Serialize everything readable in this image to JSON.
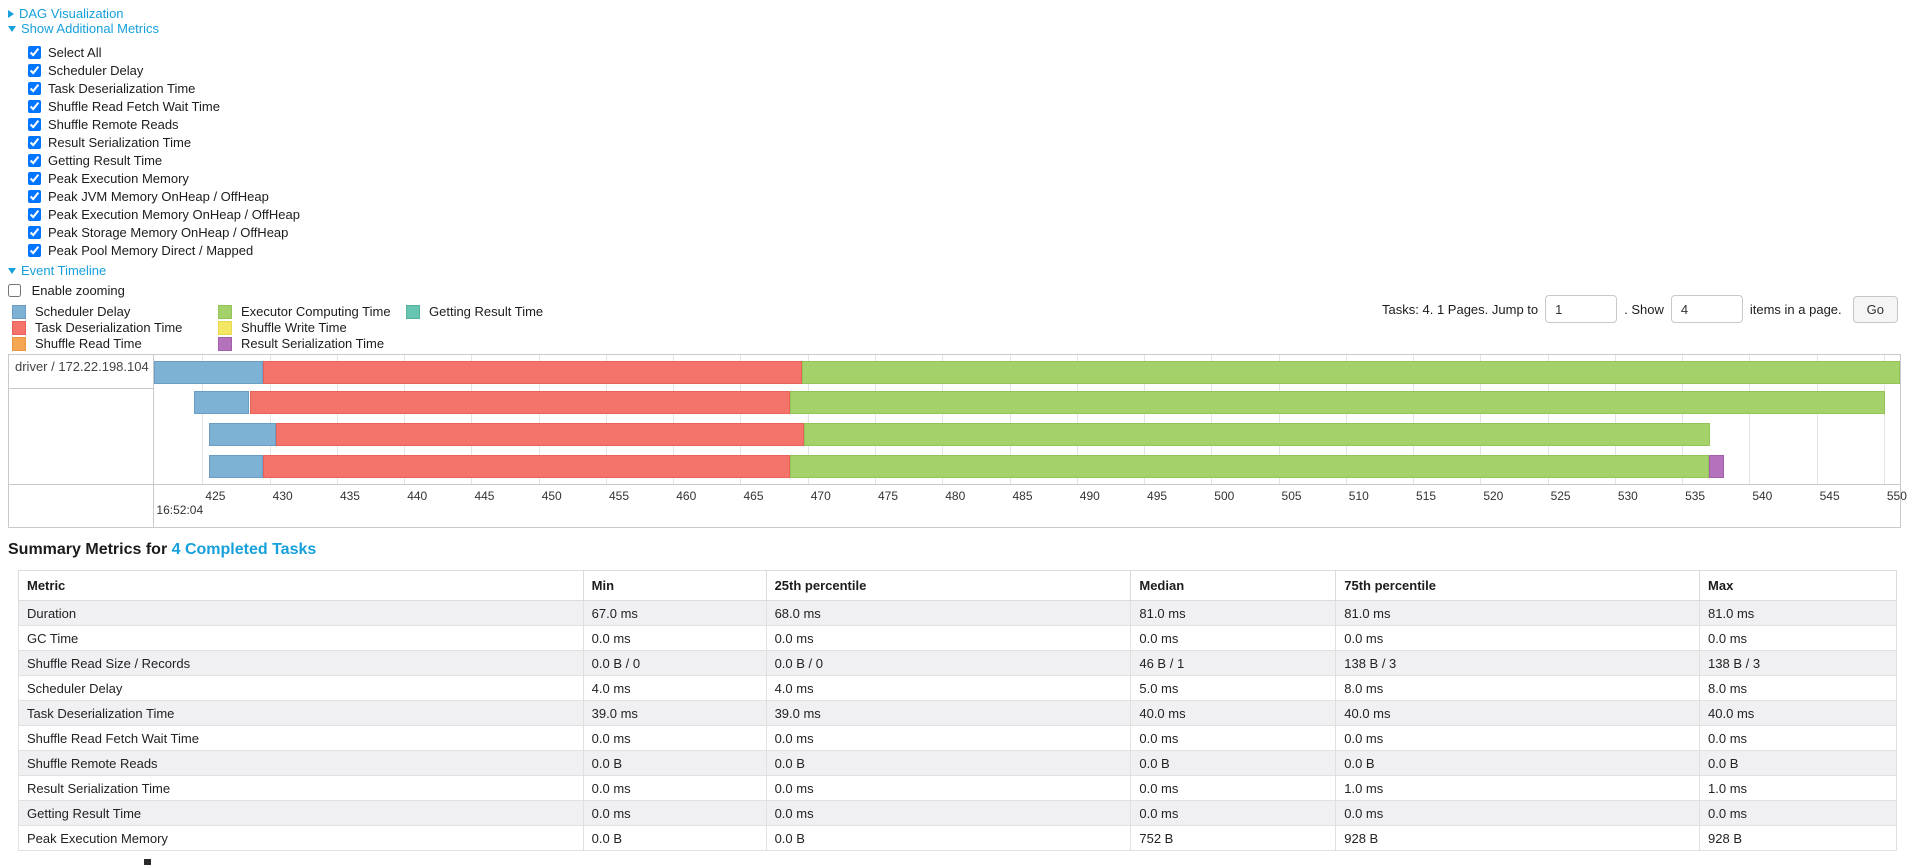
{
  "toggles": {
    "dag_visualization": "DAG Visualization",
    "show_additional_metrics": "Show Additional Metrics",
    "event_timeline": "Event Timeline"
  },
  "additional_metrics": {
    "items": [
      {
        "label": "Select All",
        "checked": true
      },
      {
        "label": "Scheduler Delay",
        "checked": true
      },
      {
        "label": "Task Deserialization Time",
        "checked": true
      },
      {
        "label": "Shuffle Read Fetch Wait Time",
        "checked": true
      },
      {
        "label": "Shuffle Remote Reads",
        "checked": true
      },
      {
        "label": "Result Serialization Time",
        "checked": true
      },
      {
        "label": "Getting Result Time",
        "checked": true
      },
      {
        "label": "Peak Execution Memory",
        "checked": true
      },
      {
        "label": "Peak JVM Memory OnHeap / OffHeap",
        "checked": true
      },
      {
        "label": "Peak Execution Memory OnHeap / OffHeap",
        "checked": true
      },
      {
        "label": "Peak Storage Memory OnHeap / OffHeap",
        "checked": true
      },
      {
        "label": "Peak Pool Memory Direct / Mapped",
        "checked": true
      }
    ]
  },
  "enable_zooming": {
    "label": "Enable zooming",
    "checked": false
  },
  "legend": {
    "columns": [
      {
        "items": [
          {
            "key": "scheduler_delay",
            "label": "Scheduler Delay"
          },
          {
            "key": "task_deserialization",
            "label": "Task Deserialization Time"
          },
          {
            "key": "shuffle_read",
            "label": "Shuffle Read Time"
          }
        ]
      },
      {
        "items": [
          {
            "key": "executor_computing",
            "label": "Executor Computing Time"
          },
          {
            "key": "shuffle_write",
            "label": "Shuffle Write Time"
          },
          {
            "key": "result_serialization",
            "label": "Result Serialization Time"
          }
        ]
      },
      {
        "items": [
          {
            "key": "getting_result",
            "label": "Getting Result Time"
          }
        ]
      }
    ]
  },
  "colors": {
    "scheduler_delay": {
      "fill": "#7EB2D5",
      "border": "#6A9EC4"
    },
    "task_deserialization": {
      "fill": "#F4736B",
      "border": "#E8625A"
    },
    "shuffle_read": {
      "fill": "#F6A754",
      "border": "#E89440"
    },
    "executor_computing": {
      "fill": "#A5D16B",
      "border": "#94C455"
    },
    "shuffle_write": {
      "fill": "#F3E662",
      "border": "#E5D84E"
    },
    "getting_result": {
      "fill": "#68C5B2",
      "border": "#54B3A0"
    },
    "result_serialization": {
      "fill": "#B471BC",
      "border": "#A35FAB"
    },
    "link_blue": "#16a0db"
  },
  "pagination": {
    "tasks_text": "Tasks: 4. 1 Pages. Jump to",
    "jump_value": "1",
    "show_text": ". Show",
    "page_size": "4",
    "items_text": "items in a page.",
    "go_label": "Go"
  },
  "chart_data": {
    "type": "timeline",
    "group_label": "driver / 172.22.198.104",
    "axis": {
      "min": 421.4,
      "max": 551.2,
      "ticks": [
        425,
        430,
        435,
        440,
        445,
        450,
        455,
        460,
        465,
        470,
        475,
        480,
        485,
        490,
        495,
        500,
        505,
        510,
        515,
        520,
        525,
        530,
        535,
        540,
        545,
        550
      ],
      "start_time_label": "16:52:04"
    },
    "tasks": [
      {
        "segments": [
          {
            "k": "scheduler_delay",
            "from": 421.4,
            "to": 429.5
          },
          {
            "k": "task_deserialization",
            "from": 429.5,
            "to": 469.6
          },
          {
            "k": "executor_computing",
            "from": 469.6,
            "to": 551.2
          }
        ]
      },
      {
        "segments": [
          {
            "k": "scheduler_delay",
            "from": 424.4,
            "to": 428.5
          },
          {
            "k": "task_deserialization",
            "from": 428.5,
            "to": 468.7
          },
          {
            "k": "executor_computing",
            "from": 468.7,
            "to": 550.1
          }
        ]
      },
      {
        "segments": [
          {
            "k": "scheduler_delay",
            "from": 425.5,
            "to": 430.5
          },
          {
            "k": "task_deserialization",
            "from": 430.5,
            "to": 469.7
          },
          {
            "k": "executor_computing",
            "from": 469.7,
            "to": 537.1
          }
        ]
      },
      {
        "segments": [
          {
            "k": "scheduler_delay",
            "from": 425.5,
            "to": 429.5
          },
          {
            "k": "task_deserialization",
            "from": 429.5,
            "to": 468.7
          },
          {
            "k": "executor_computing",
            "from": 468.7,
            "to": 537.0
          },
          {
            "k": "result_serialization",
            "from": 537.0,
            "to": 538.1
          }
        ]
      }
    ]
  },
  "summary": {
    "title_prefix": "Summary Metrics for",
    "title_link": "4 Completed Tasks",
    "table": {
      "headers": [
        "Metric",
        "Min",
        "25th percentile",
        "Median",
        "75th percentile",
        "Max"
      ],
      "rows": [
        {
          "metric": "Duration",
          "values": [
            "67.0 ms",
            "68.0 ms",
            "81.0 ms",
            "81.0 ms",
            "81.0 ms"
          ]
        },
        {
          "metric": "GC Time",
          "values": [
            "0.0 ms",
            "0.0 ms",
            "0.0 ms",
            "0.0 ms",
            "0.0 ms"
          ]
        },
        {
          "metric": "Shuffle Read Size / Records",
          "values": [
            "0.0 B / 0",
            "0.0 B / 0",
            "46 B / 1",
            "138 B / 3",
            "138 B / 3"
          ]
        },
        {
          "metric": "Scheduler Delay",
          "values": [
            "4.0 ms",
            "4.0 ms",
            "5.0 ms",
            "8.0 ms",
            "8.0 ms"
          ]
        },
        {
          "metric": "Task Deserialization Time",
          "values": [
            "39.0 ms",
            "39.0 ms",
            "40.0 ms",
            "40.0 ms",
            "40.0 ms"
          ]
        },
        {
          "metric": "Shuffle Read Fetch Wait Time",
          "values": [
            "0.0 ms",
            "0.0 ms",
            "0.0 ms",
            "0.0 ms",
            "0.0 ms"
          ]
        },
        {
          "metric": "Shuffle Remote Reads",
          "values": [
            "0.0 B",
            "0.0 B",
            "0.0 B",
            "0.0 B",
            "0.0 B"
          ]
        },
        {
          "metric": "Result Serialization Time",
          "values": [
            "0.0 ms",
            "0.0 ms",
            "0.0 ms",
            "1.0 ms",
            "1.0 ms"
          ]
        },
        {
          "metric": "Getting Result Time",
          "values": [
            "0.0 ms",
            "0.0 ms",
            "0.0 ms",
            "0.0 ms",
            "0.0 ms"
          ]
        },
        {
          "metric": "Peak Execution Memory",
          "values": [
            "0.0 B",
            "0.0 B",
            "752 B",
            "928 B",
            "928 B"
          ]
        }
      ]
    }
  }
}
